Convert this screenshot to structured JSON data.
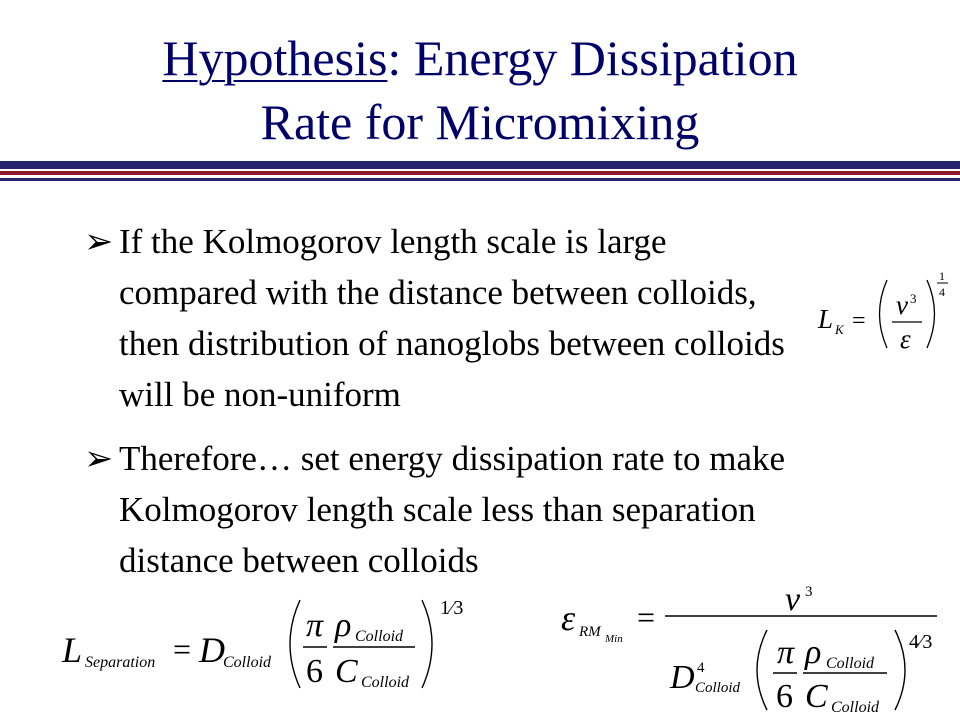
{
  "title": {
    "underlined": "Hypothesis",
    "rest_line1": ": Energy Dissipation",
    "line2": "Rate for Micromixing"
  },
  "bullets": [
    {
      "arrow": "➢",
      "text": "If the Kolmogorov length scale is large compared with the distance between colloids, then distribution of nanoglobs between colloids will be non-uniform"
    },
    {
      "arrow": "➢",
      "text": "Therefore… set energy dissipation rate to make Kolmogorov length scale less than separation distance between colloids"
    }
  ],
  "equations": {
    "kolmogorov": {
      "L": "L",
      "sub": "K",
      "eq": "=",
      "num": "ν",
      "num_sup": "3",
      "den": "ε",
      "exp_num": "1",
      "exp_den": "4"
    },
    "separation": {
      "L": "L",
      "L_sub": "Separation",
      "eq": "=",
      "D": "D",
      "D_sub": "Colloid",
      "pi": "π",
      "six": "6",
      "rho": "ρ",
      "rho_sub": "Colloid",
      "C": "C",
      "C_sub": "Colloid",
      "exp": "1⁄3"
    },
    "eps_min": {
      "eps": "ε",
      "eps_sub": "RM",
      "eps_subsub": "Min",
      "eq": "=",
      "num": "ν",
      "num_sup": "3",
      "D": "D",
      "D_sup": "4",
      "D_sub": "Colloid",
      "pi": "π",
      "six": "6",
      "rho": "ρ",
      "rho_sub": "Colloid",
      "C": "C",
      "C_sub": "Colloid",
      "exp": "4⁄3"
    }
  }
}
